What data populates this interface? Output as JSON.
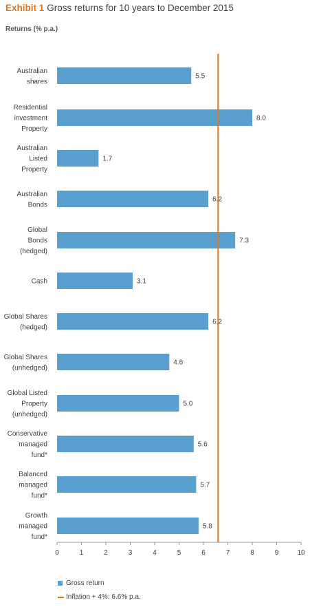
{
  "header": {
    "exhibit": "Exhibit 1",
    "title": "Gross returns for 10 years to December 2015",
    "subtitle": "Returns (% p.a.)"
  },
  "colors": {
    "bar": "#5aa0cf",
    "reference_line": "#e8751a",
    "title_accent": "#e8751a"
  },
  "chart_data": {
    "type": "bar",
    "orientation": "horizontal",
    "title": "Gross returns for 10 years to December 2015",
    "xlabel": "",
    "ylabel": "Returns (% p.a.)",
    "xlim": [
      0,
      10
    ],
    "xticks": [
      "0",
      "1",
      "2",
      "3",
      "4",
      "5",
      "6",
      "7",
      "8",
      "9",
      "10"
    ],
    "grid": false,
    "legend_placement": "bottom",
    "categories": [
      [
        "Australian",
        "shares"
      ],
      [
        "Residential",
        "investment",
        "Property"
      ],
      [
        "Australian",
        "Listed",
        "Property"
      ],
      [
        "Australian",
        "Bonds"
      ],
      [
        "Global",
        "Bonds",
        "(hedged)"
      ],
      [
        "Cash"
      ],
      [
        "Global Shares",
        "(hedged)"
      ],
      [
        "Global Shares",
        "(unhedged)"
      ],
      [
        "Global Listed",
        "Property",
        "(unhedged)"
      ],
      [
        "Conservative",
        "managed",
        "fund*"
      ],
      [
        "Balanced",
        "managed",
        "fund*"
      ],
      [
        "Growth",
        "managed",
        "fund*"
      ]
    ],
    "series": [
      {
        "name": "Gross return",
        "values": [
          5.5,
          8.0,
          1.7,
          6.2,
          7.3,
          3.1,
          6.2,
          4.6,
          5.0,
          5.6,
          5.7,
          5.8
        ],
        "labels": [
          "5.5",
          "8.0",
          "1.7",
          "6.2",
          "7.3",
          "3.1",
          "6.2",
          "4.6",
          "5.0",
          "5.6",
          "5.7",
          "5.8"
        ]
      }
    ],
    "reference_line": {
      "name": "Inflation + 4%:  6.6% p.a.",
      "value": 6.6
    },
    "legend": [
      "Gross return",
      "Inflation + 4%:  6.6% p.a."
    ]
  }
}
